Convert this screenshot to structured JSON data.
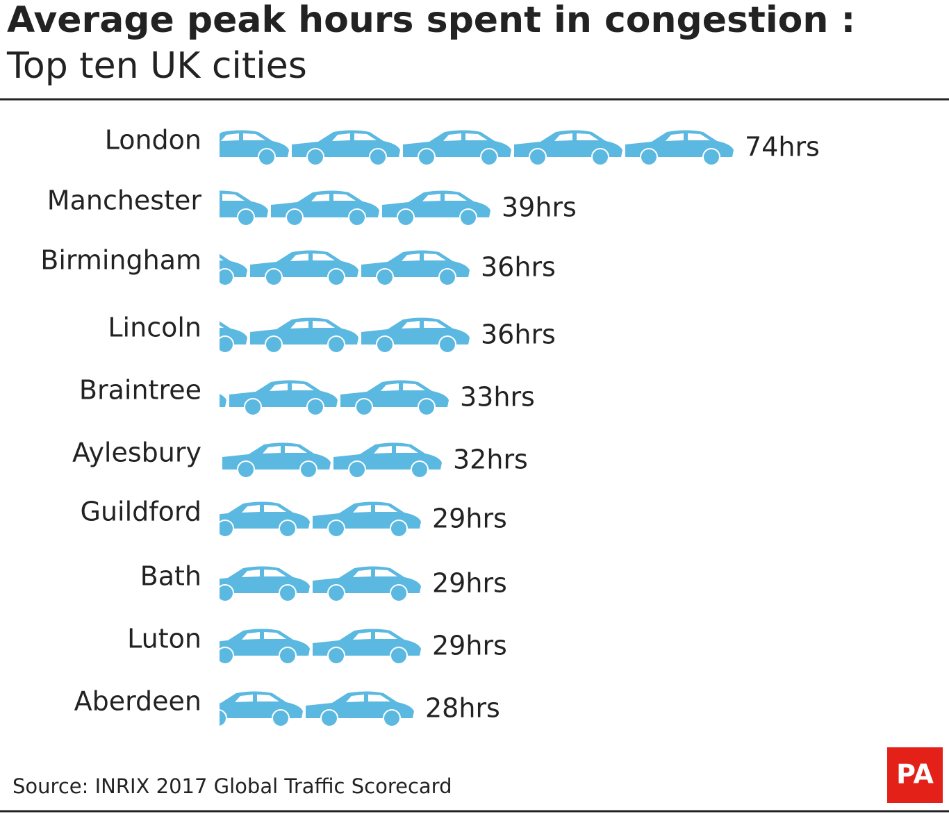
{
  "chart_data": {
    "type": "bar",
    "orientation": "horizontal",
    "pictogram": "car",
    "title": "Average peak hours spent in congestion :",
    "subtitle": "Top ten UK cities",
    "categories": [
      "London",
      "Manchester",
      "Birmingham",
      "Lincoln",
      "Braintree",
      "Aylesbury",
      "Guildford",
      "Bath",
      "Luton",
      "Aberdeen"
    ],
    "values": [
      74,
      39,
      36,
      36,
      33,
      32,
      29,
      29,
      29,
      28
    ],
    "value_labels": [
      "74hrs",
      "39hrs",
      "36hrs",
      "36hrs",
      "33hrs",
      "32hrs",
      "29hrs",
      "29hrs",
      "29hrs",
      "28hrs"
    ],
    "color": "#5bb8e0",
    "source": "Source: INRIX 2017 Global Traffic Scorecard",
    "logo": "PA"
  }
}
